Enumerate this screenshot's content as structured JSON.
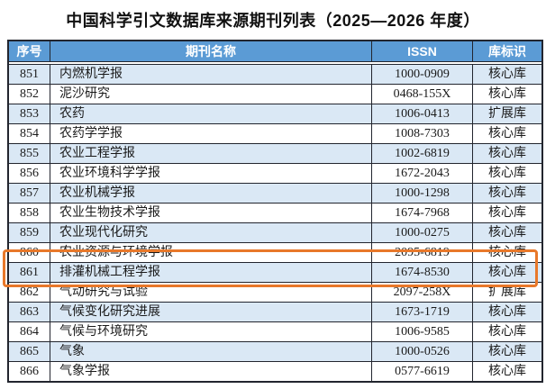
{
  "title": "中国科学引文数据库来源期刊列表（2025—2026 年度）",
  "table": {
    "columns": [
      "序号",
      "期刊名称",
      "ISSN",
      "库标识"
    ],
    "rows": [
      {
        "no": "851",
        "name": "内燃机学报",
        "issn": "1000-0909",
        "db": "核心库"
      },
      {
        "no": "852",
        "name": "泥沙研究",
        "issn": "0468-155X",
        "db": "核心库"
      },
      {
        "no": "853",
        "name": "农药",
        "issn": "1006-0413",
        "db": "扩展库"
      },
      {
        "no": "854",
        "name": "农药学学报",
        "issn": "1008-7303",
        "db": "核心库"
      },
      {
        "no": "855",
        "name": "农业工程学报",
        "issn": "1002-6819",
        "db": "核心库"
      },
      {
        "no": "856",
        "name": "农业环境科学学报",
        "issn": "1672-2043",
        "db": "核心库"
      },
      {
        "no": "857",
        "name": "农业机械学报",
        "issn": "1000-1298",
        "db": "核心库"
      },
      {
        "no": "858",
        "name": "农业生物技术学报",
        "issn": "1674-7968",
        "db": "核心库"
      },
      {
        "no": "859",
        "name": "农业现代化研究",
        "issn": "1000-0275",
        "db": "核心库"
      },
      {
        "no": "860",
        "name": "农业资源与环境学报",
        "issn": "2095-6819",
        "db": "核心库"
      },
      {
        "no": "861",
        "name": "排灌机械工程学报",
        "issn": "1674-8530",
        "db": "核心库"
      },
      {
        "no": "862",
        "name": "气动研究与试验",
        "issn": "2097-258X",
        "db": "扩展库"
      },
      {
        "no": "863",
        "name": "气候变化研究进展",
        "issn": "1673-1719",
        "db": "核心库"
      },
      {
        "no": "864",
        "name": "气候与环境研究",
        "issn": "1006-9585",
        "db": "核心库"
      },
      {
        "no": "865",
        "name": "气象",
        "issn": "1000-0526",
        "db": "核心库"
      },
      {
        "no": "866",
        "name": "气象学报",
        "issn": "0577-6619",
        "db": "核心库"
      }
    ]
  },
  "highlight": {
    "row_no": "861"
  },
  "colors": {
    "header_bg": "#5B9BD5",
    "row_alt_bg": "#DAE8F5",
    "border": "#22252e",
    "highlight": "#E8782A"
  }
}
